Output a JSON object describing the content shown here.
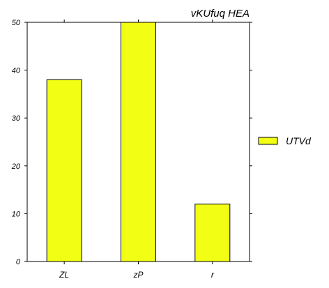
{
  "chart_data": {
    "type": "bar",
    "title": "vKUfuq HEA",
    "xlabel": "",
    "ylabel": "",
    "categories": [
      "ZL",
      "zP",
      "r"
    ],
    "series": [
      {
        "name": "UTVd",
        "values": [
          38,
          50,
          12
        ]
      }
    ],
    "ylim": [
      0,
      50
    ],
    "yticks": [
      0,
      10,
      20,
      30,
      40,
      50
    ],
    "grid": false,
    "legend_position": "right",
    "colors": {
      "bar_fill": "#f2ff14",
      "bar_stroke": "#000000",
      "axis": "#000000"
    }
  }
}
